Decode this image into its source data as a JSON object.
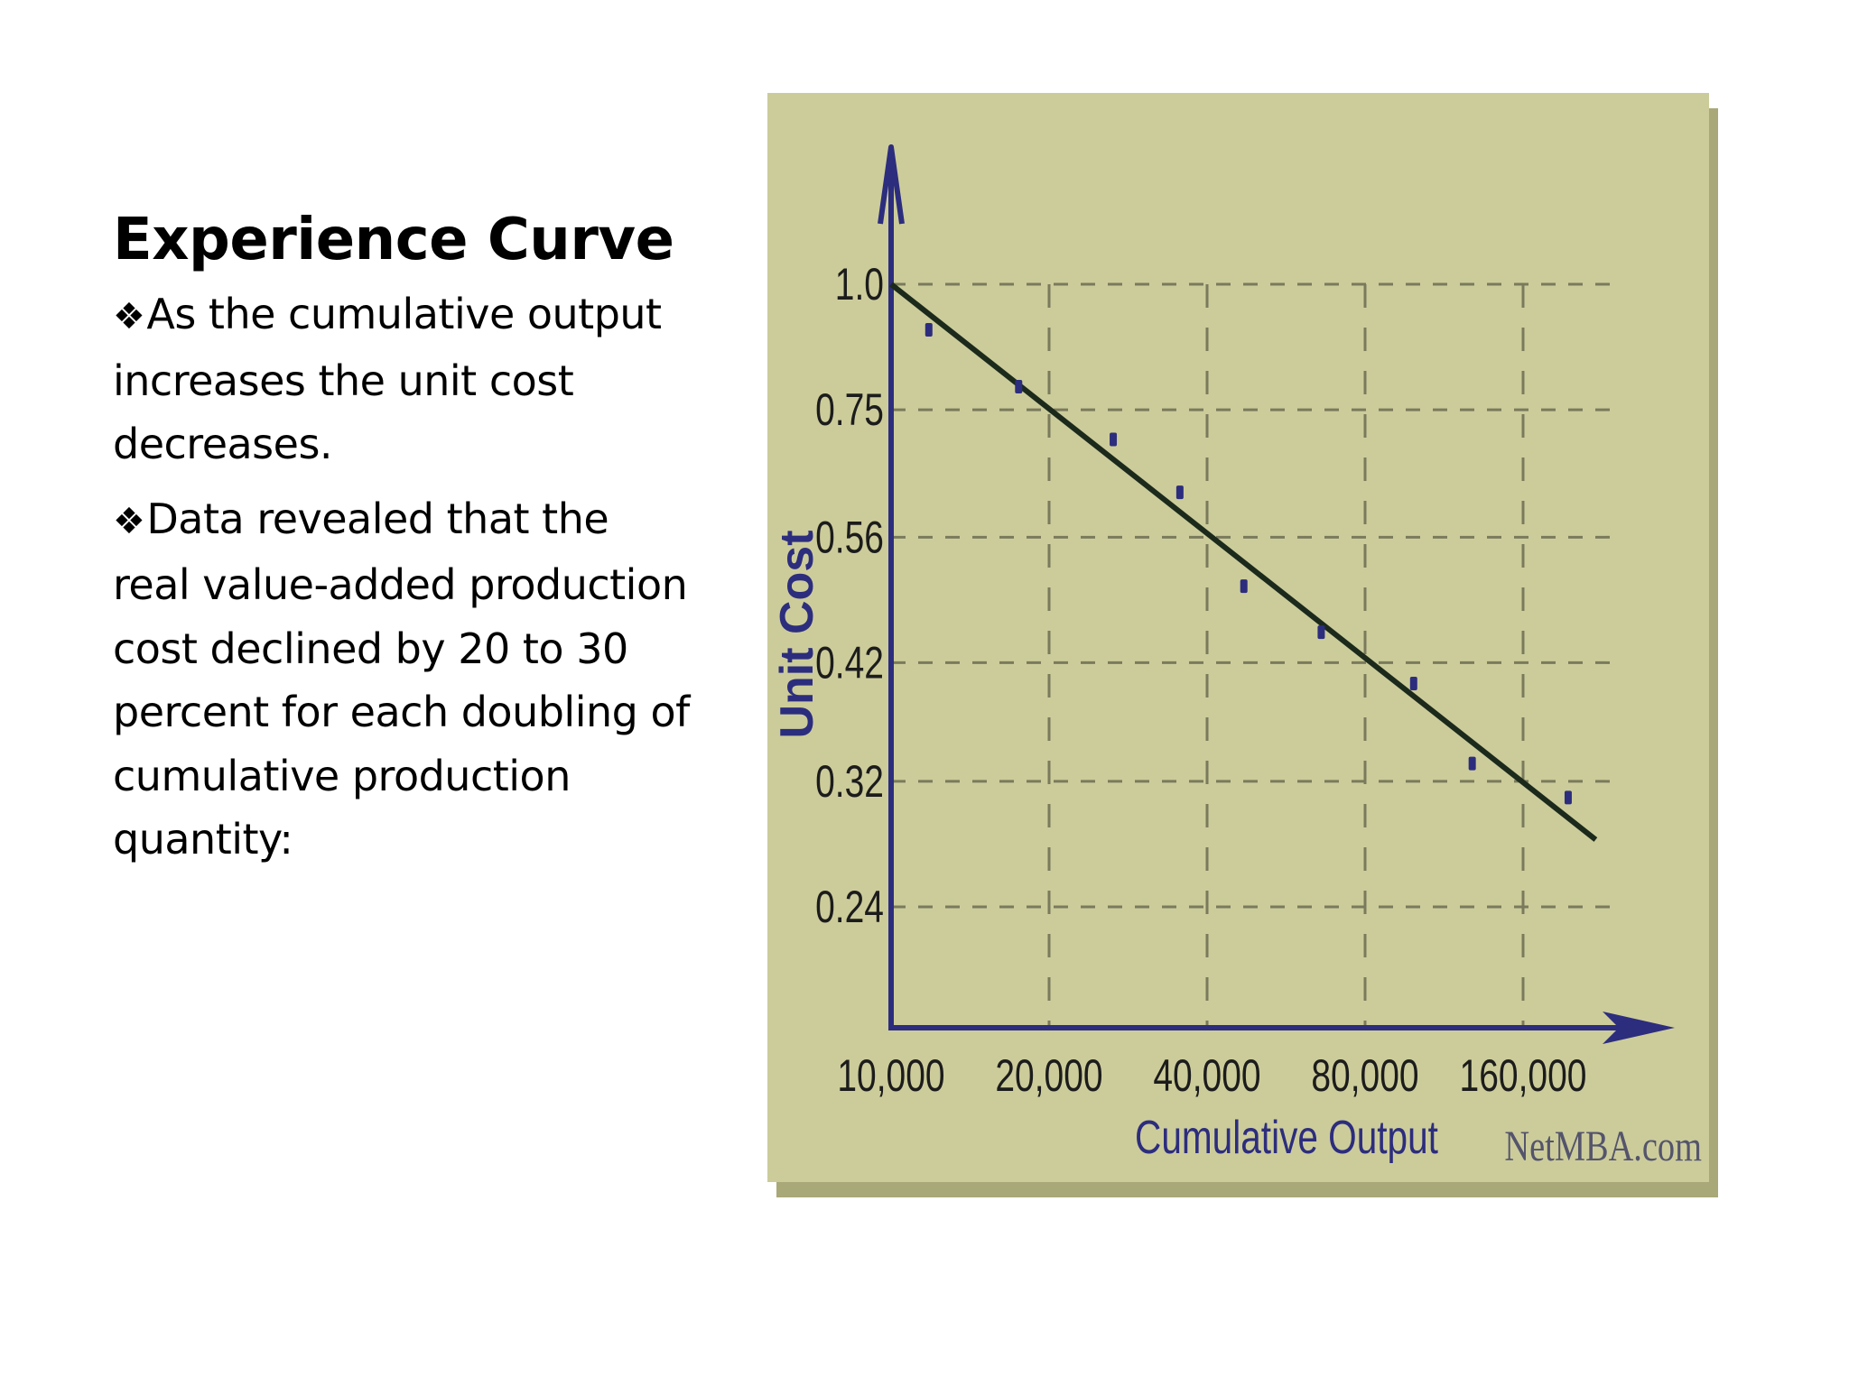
{
  "slide": {
    "title": "Experience Curve",
    "bullet_glyph": "❖",
    "bullets": [
      "As the cumulative output increases the unit cost decreases.",
      "Data revealed that the real value-added production cost declined by 20 to 30 percent for each doubling of cumulative production quantity:"
    ]
  },
  "chart_data": {
    "type": "scatter",
    "title": "",
    "xlabel": "Cumulative Output",
    "ylabel": "Unit Cost",
    "x_scale": "log2",
    "y_scale": "log",
    "x_ticks": [
      10000,
      20000,
      40000,
      80000,
      160000
    ],
    "x_tick_labels": [
      "10,000",
      "20,000",
      "40,000",
      "80,000",
      "160,000"
    ],
    "y_ticks": [
      1.0,
      0.75,
      0.56,
      0.42,
      0.32,
      0.24
    ],
    "y_tick_labels": [
      "1.0",
      "0.75",
      "0.56",
      "0.42",
      "0.32",
      "0.24"
    ],
    "grid": true,
    "series": [
      {
        "values": [
          {
            "x": 11800,
            "y": 0.9
          },
          {
            "x": 17500,
            "y": 0.79
          },
          {
            "x": 26500,
            "y": 0.7
          },
          {
            "x": 35500,
            "y": 0.62
          },
          {
            "x": 47000,
            "y": 0.5
          },
          {
            "x": 66000,
            "y": 0.45
          },
          {
            "x": 99000,
            "y": 0.4
          },
          {
            "x": 128000,
            "y": 0.333
          },
          {
            "x": 195000,
            "y": 0.308
          }
        ]
      }
    ],
    "trend_line": {
      "from": {
        "x": 10000,
        "y": 1.0
      },
      "to": {
        "x": 220000,
        "y": 0.28
      }
    },
    "colors": {
      "panel": "#cccc9b",
      "axis": "#2d2d7e",
      "points": "#2d2d7e",
      "trend": "#1c2a1c",
      "grid": "#7a7a5c"
    },
    "watermark": "NetMBA.com"
  }
}
